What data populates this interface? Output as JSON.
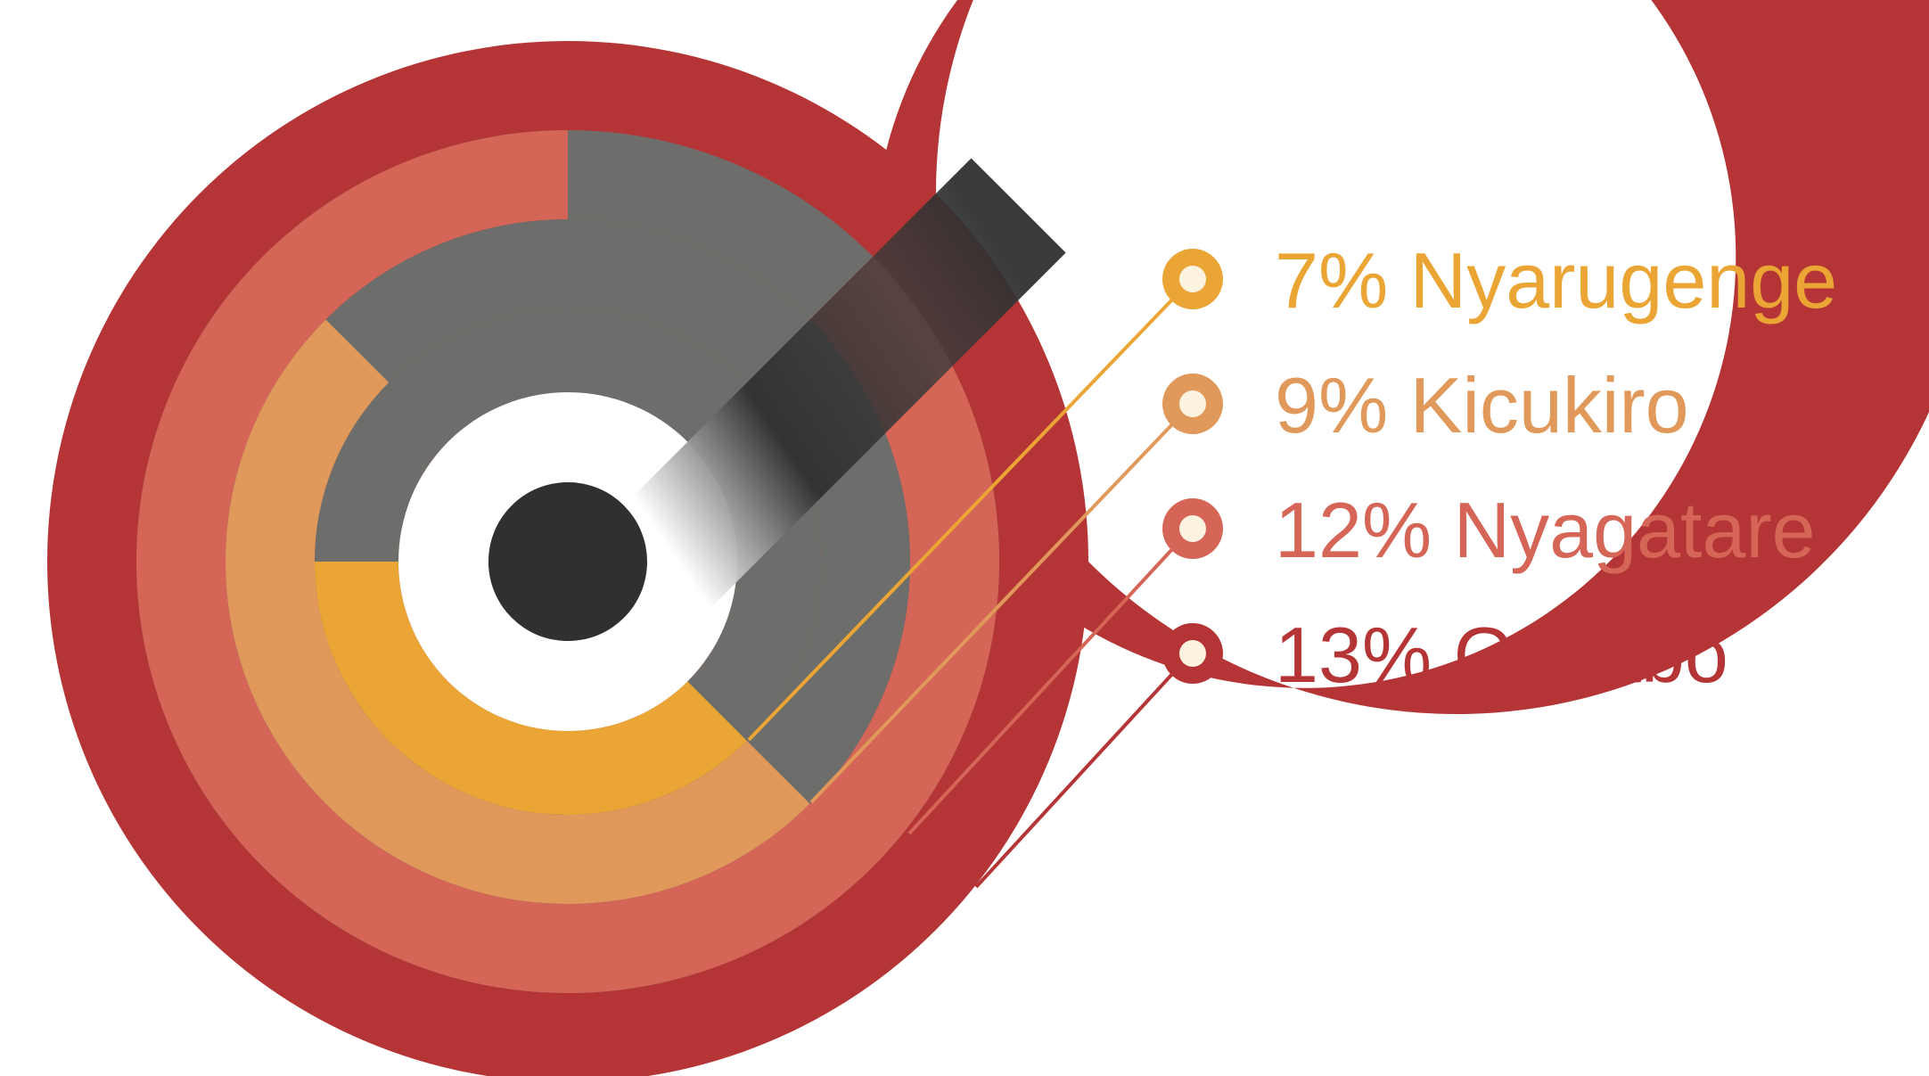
{
  "chart_data": {
    "type": "radial-bar",
    "title": "",
    "series": [
      {
        "name": "Gasabo",
        "label": "13% Gasabo",
        "value": 13,
        "color": "#b53536"
      },
      {
        "name": "Nyagatare",
        "label": "12% Nyagatare",
        "value": 12,
        "color": "#d56557"
      },
      {
        "name": "Kicukiro",
        "label": "9% Kicukiro",
        "value": 9,
        "color": "#e0995a"
      },
      {
        "name": "Nyarugenge",
        "label": "7% Nyarugenge",
        "value": 7,
        "color": "#eaa535"
      }
    ],
    "legend_order": [
      "Nyarugenge",
      "Kicukiro",
      "Nyagatare",
      "Gasabo"
    ],
    "legend_position": "right",
    "track_color": "#6d6d6b",
    "hub_color": "#2f3030",
    "dot_fill": "#fbf2e0"
  }
}
